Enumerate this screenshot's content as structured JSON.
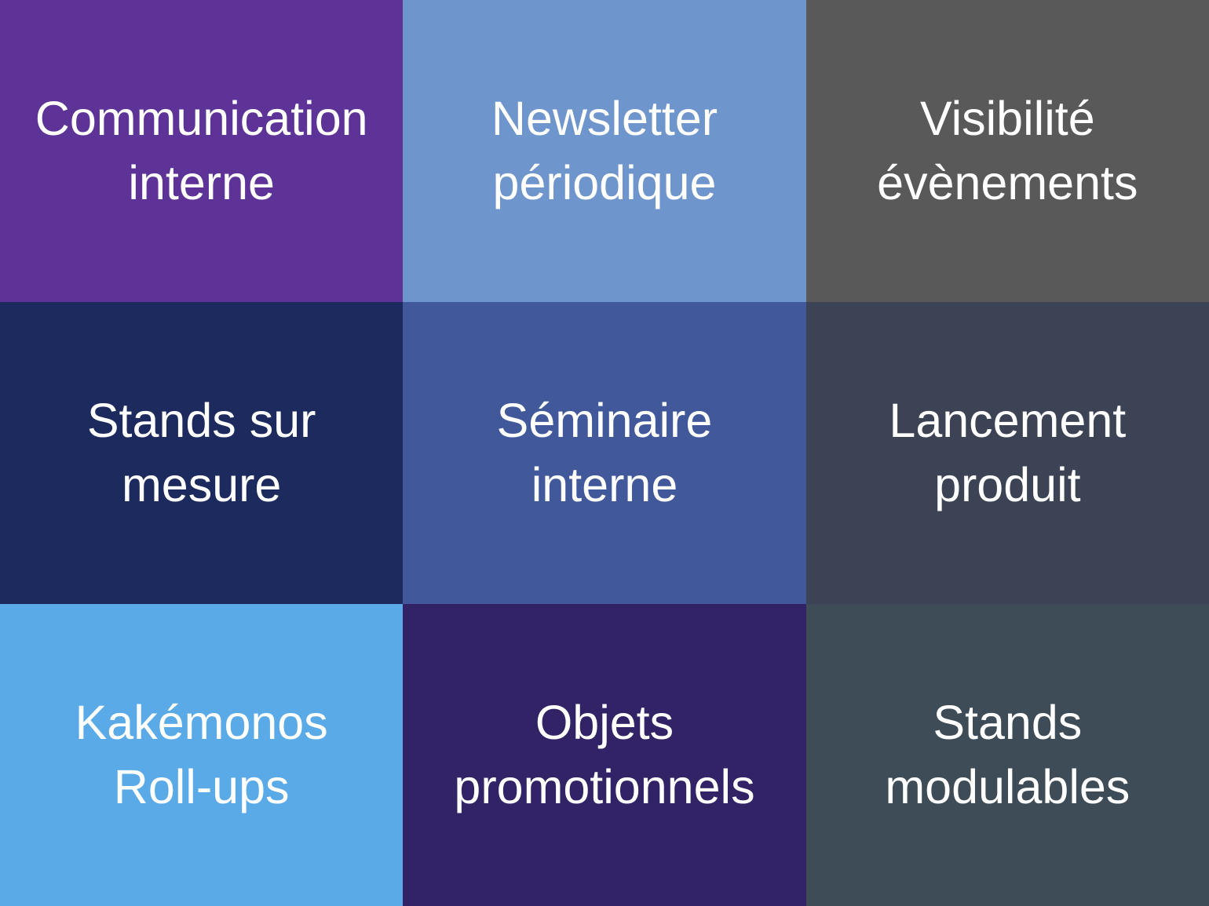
{
  "grid": {
    "text_color": "#FFFFFF",
    "tiles": [
      {
        "id": "communication-interne",
        "lines": [
          "Communication",
          "interne"
        ],
        "bg": "#5E3397"
      },
      {
        "id": "newsletter-periodique",
        "lines": [
          "Newsletter",
          "périodique"
        ],
        "bg": "#6E95CC"
      },
      {
        "id": "visibilite-evenements",
        "lines": [
          "Visibilité",
          "évènements"
        ],
        "bg": "#595959"
      },
      {
        "id": "stands-sur-mesure",
        "lines": [
          "Stands sur",
          "mesure"
        ],
        "bg": "#1C2A5E"
      },
      {
        "id": "seminaire-interne",
        "lines": [
          "Séminaire",
          "interne"
        ],
        "bg": "#41589B"
      },
      {
        "id": "lancement-produit",
        "lines": [
          "Lancement",
          "produit"
        ],
        "bg": "#3B4354"
      },
      {
        "id": "kakemonos-roll-ups",
        "lines": [
          "Kakémonos",
          "Roll-ups"
        ],
        "bg": "#5AAAE8"
      },
      {
        "id": "objets-promotionnels",
        "lines": [
          "Objets",
          "promotionnels"
        ],
        "bg": "#312366"
      },
      {
        "id": "stands-modulables",
        "lines": [
          "Stands",
          "modulables"
        ],
        "bg": "#3D4C57"
      }
    ]
  }
}
